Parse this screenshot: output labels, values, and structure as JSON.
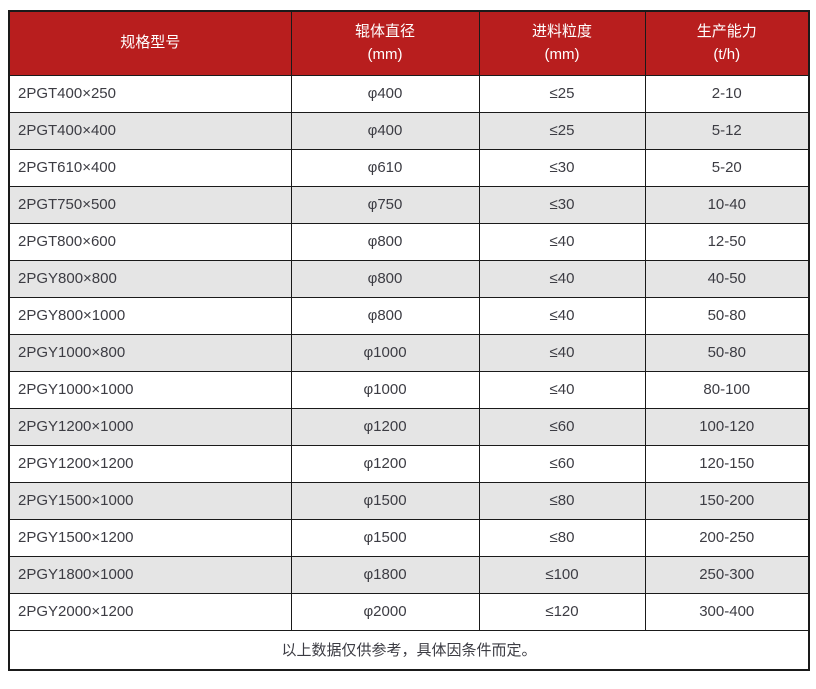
{
  "table": {
    "columns": [
      {
        "label": "规格型号",
        "unit": ""
      },
      {
        "label": "辊体直径",
        "unit": "(mm)"
      },
      {
        "label": "进料粒度",
        "unit": "(mm)"
      },
      {
        "label": "生产能力",
        "unit": "(t/h)"
      }
    ],
    "rows": [
      [
        "2PGT400×250",
        "φ400",
        "≤25",
        "2-10"
      ],
      [
        "2PGT400×400",
        "φ400",
        "≤25",
        "5-12"
      ],
      [
        "2PGT610×400",
        "φ610",
        "≤30",
        "5-20"
      ],
      [
        "2PGT750×500",
        "φ750",
        "≤30",
        "10-40"
      ],
      [
        "2PGT800×600",
        "φ800",
        "≤40",
        "12-50"
      ],
      [
        "2PGY800×800",
        "φ800",
        "≤40",
        "40-50"
      ],
      [
        "2PGY800×1000",
        "φ800",
        "≤40",
        "50-80"
      ],
      [
        "2PGY1000×800",
        "φ1000",
        "≤40",
        "50-80"
      ],
      [
        "2PGY1000×1000",
        "φ1000",
        "≤40",
        "80-100"
      ],
      [
        "2PGY1200×1000",
        "φ1200",
        "≤60",
        "100-120"
      ],
      [
        "2PGY1200×1200",
        "φ1200",
        "≤60",
        "120-150"
      ],
      [
        "2PGY1500×1000",
        "φ1500",
        "≤80",
        "150-200"
      ],
      [
        "2PGY1500×1200",
        "φ1500",
        "≤80",
        "200-250"
      ],
      [
        "2PGY1800×1000",
        "φ1800",
        "≤100",
        "250-300"
      ],
      [
        "2PGY2000×1200",
        "φ2000",
        "≤120",
        "300-400"
      ]
    ],
    "footer_note": "以上数据仅供参考，具体因条件而定。"
  },
  "colors": {
    "header_bg": "#b81e1e",
    "header_text": "#ffffff",
    "row_bg": "#ffffff",
    "row_alt_bg": "#e5e5e5",
    "body_text": "#3c3c43",
    "border": "#1a1a1a"
  }
}
